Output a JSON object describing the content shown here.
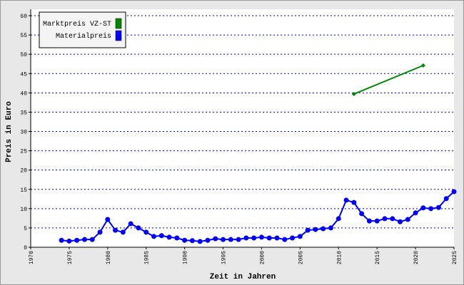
{
  "chart_data": {
    "type": "line",
    "xlabel": "Zeit in Jahren",
    "ylabel": "Preis in Euro",
    "xlim": [
      1970,
      2025
    ],
    "xticks": [
      1970,
      1975,
      1980,
      1985,
      1990,
      1995,
      2000,
      2005,
      2010,
      2015,
      2020,
      2025
    ],
    "ylim": [
      0,
      60
    ],
    "yticks": [
      0,
      5,
      10,
      15,
      20,
      25,
      30,
      35,
      40,
      45,
      50,
      55,
      60
    ],
    "grid": true,
    "legend": "upper left",
    "series": [
      {
        "name": "Marktpreis VZ-ST",
        "color": "#008800",
        "marker": "diamond",
        "x": [
          2012,
          2021
        ],
        "values": [
          39.7,
          47.1
        ]
      },
      {
        "name": "Materialpreis",
        "color": "#0000ff",
        "marker": "circle",
        "x": [
          1974,
          1975,
          1976,
          1977,
          1978,
          1979,
          1980,
          1981,
          1982,
          1983,
          1984,
          1985,
          1986,
          1987,
          1988,
          1989,
          1990,
          1991,
          1992,
          1993,
          1994,
          1995,
          1996,
          1997,
          1998,
          1999,
          2000,
          2001,
          2002,
          2003,
          2004,
          2005,
          2006,
          2007,
          2008,
          2009,
          2010,
          2011,
          2012,
          2013,
          2014,
          2015,
          2016,
          2017,
          2018,
          2019,
          2020,
          2021,
          2022,
          2023,
          2024,
          2025
        ],
        "values": [
          1.8,
          1.6,
          1.8,
          2.0,
          2.0,
          3.9,
          7.2,
          4.4,
          3.9,
          6.1,
          5.0,
          3.9,
          2.8,
          3.0,
          2.6,
          2.4,
          1.8,
          1.7,
          1.5,
          1.8,
          2.2,
          2.0,
          2.0,
          2.0,
          2.4,
          2.4,
          2.6,
          2.4,
          2.4,
          2.0,
          2.4,
          2.8,
          4.4,
          4.6,
          4.8,
          5.0,
          7.4,
          12.2,
          11.6,
          8.7,
          6.8,
          6.8,
          7.4,
          7.4,
          6.6,
          7.2,
          8.9,
          10.2,
          10.0,
          10.3,
          12.6,
          14.4
        ]
      }
    ]
  }
}
